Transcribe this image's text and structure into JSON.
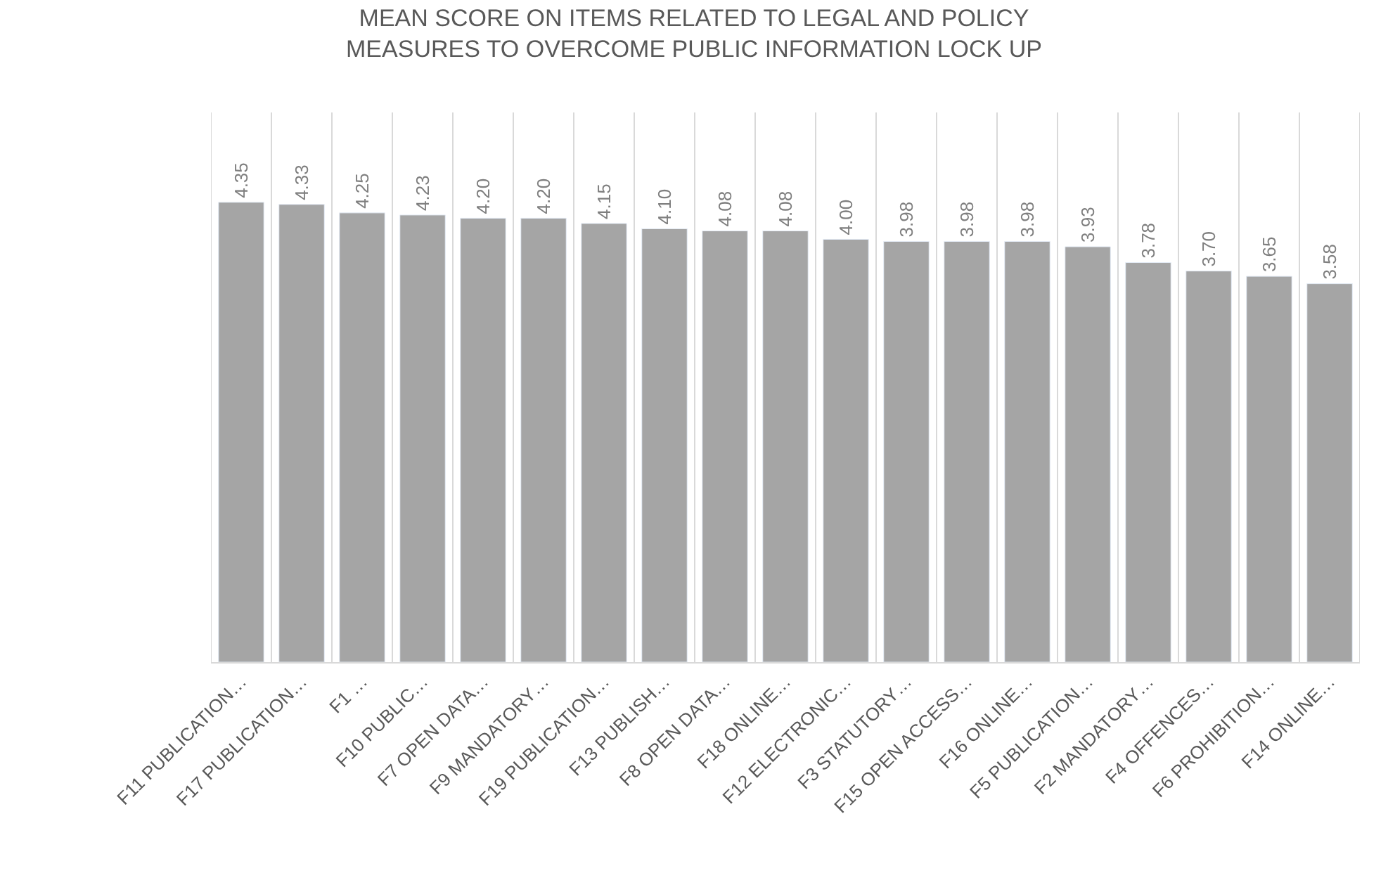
{
  "chart_data": {
    "type": "bar",
    "title": "MEAN SCORE ON ITEMS RELATED TO LEGAL AND POLICY\nMEASURES TO OVERCOME PUBLIC INFORMATION LOCK UP",
    "categories": [
      "F11 PUBLICATION…",
      "F17 PUBLICATION…",
      "F1 …",
      "F10 PUBLIC…",
      "F7 OPEN DATA…",
      "F9 MANDATORY…",
      "F19 PUBLICATION…",
      "F13 PUBLISH…",
      "F8 OPEN DATA…",
      "F18 ONLINE…",
      "F12 ELECTRONIC…",
      "F3 STATUTORY…",
      "F15 OPEN ACCESS…",
      "F16 ONLINE…",
      "F5 PUBLICATION…",
      "F2 MANDATORY…",
      "F4 OFFENCES…",
      "F6 PROHIBITION…",
      "F14 ONLINE…"
    ],
    "values": [
      4.35,
      4.33,
      4.25,
      4.23,
      4.2,
      4.2,
      4.15,
      4.1,
      4.08,
      4.08,
      4.0,
      3.98,
      3.98,
      3.98,
      3.93,
      3.78,
      3.7,
      3.65,
      3.58
    ],
    "value_labels": [
      "4.35",
      "4.33",
      "4.25",
      "4.23",
      "4.20",
      "4.20",
      "4.15",
      "4.10",
      "4.08",
      "4.08",
      "4.00",
      "3.98",
      "3.98",
      "3.98",
      "3.93",
      "3.78",
      "3.70",
      "3.65",
      "3.58"
    ],
    "color": "#a5a5a5",
    "ylim": [
      0,
      5.2
    ],
    "grid": "x",
    "tick_labels": "x"
  }
}
